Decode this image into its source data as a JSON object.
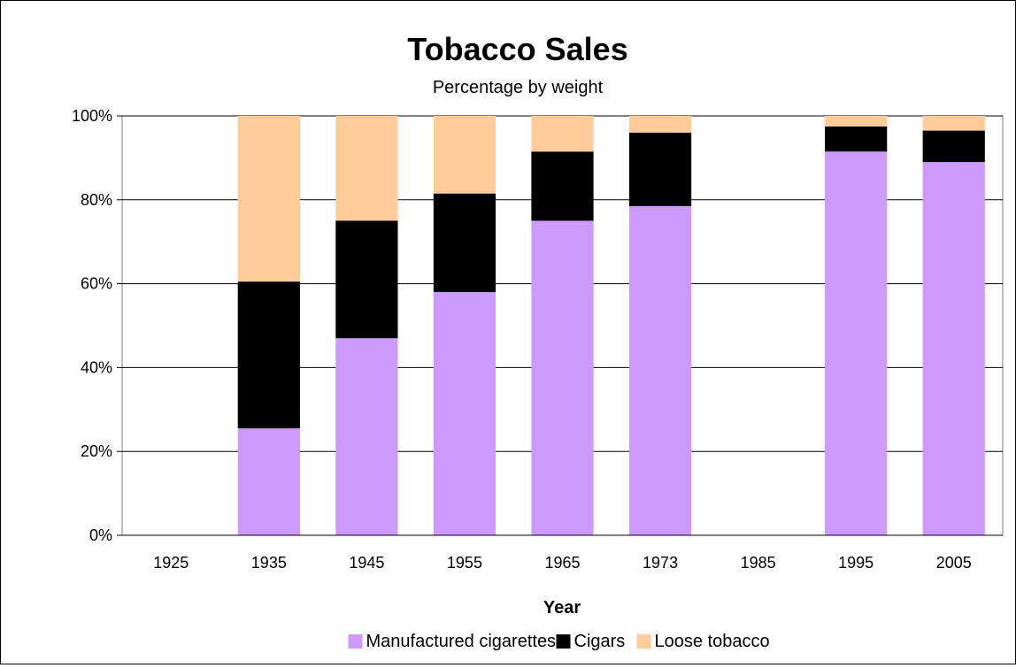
{
  "chart_data": {
    "type": "bar",
    "stacked": true,
    "title": "Tobacco Sales",
    "subtitle": "Percentage by weight",
    "xlabel": "Year",
    "ylabel": "",
    "ylim": [
      0,
      100
    ],
    "yticks": [
      "0%",
      "20%",
      "40%",
      "60%",
      "80%",
      "100%"
    ],
    "ytick_values": [
      0,
      20,
      40,
      60,
      80,
      100
    ],
    "grid": "horizontal",
    "legend": "bottom",
    "categories": [
      "1925",
      "1935",
      "1945",
      "1955",
      "1965",
      "1973",
      "1985",
      "1995",
      "2005"
    ],
    "series": [
      {
        "name": "Manufactured cigarettes",
        "color": "#cc99ff",
        "values": [
          null,
          25.5,
          47,
          58,
          75,
          78.5,
          null,
          91.5,
          89
        ]
      },
      {
        "name": "Cigars",
        "color": "#000000",
        "values": [
          null,
          35,
          28,
          23.5,
          16.5,
          17.5,
          null,
          6,
          7.5
        ]
      },
      {
        "name": "Loose tobacco",
        "color": "#ffcc99",
        "values": [
          null,
          39.5,
          25,
          18.5,
          8.5,
          4,
          null,
          2.5,
          3.5
        ]
      }
    ]
  }
}
